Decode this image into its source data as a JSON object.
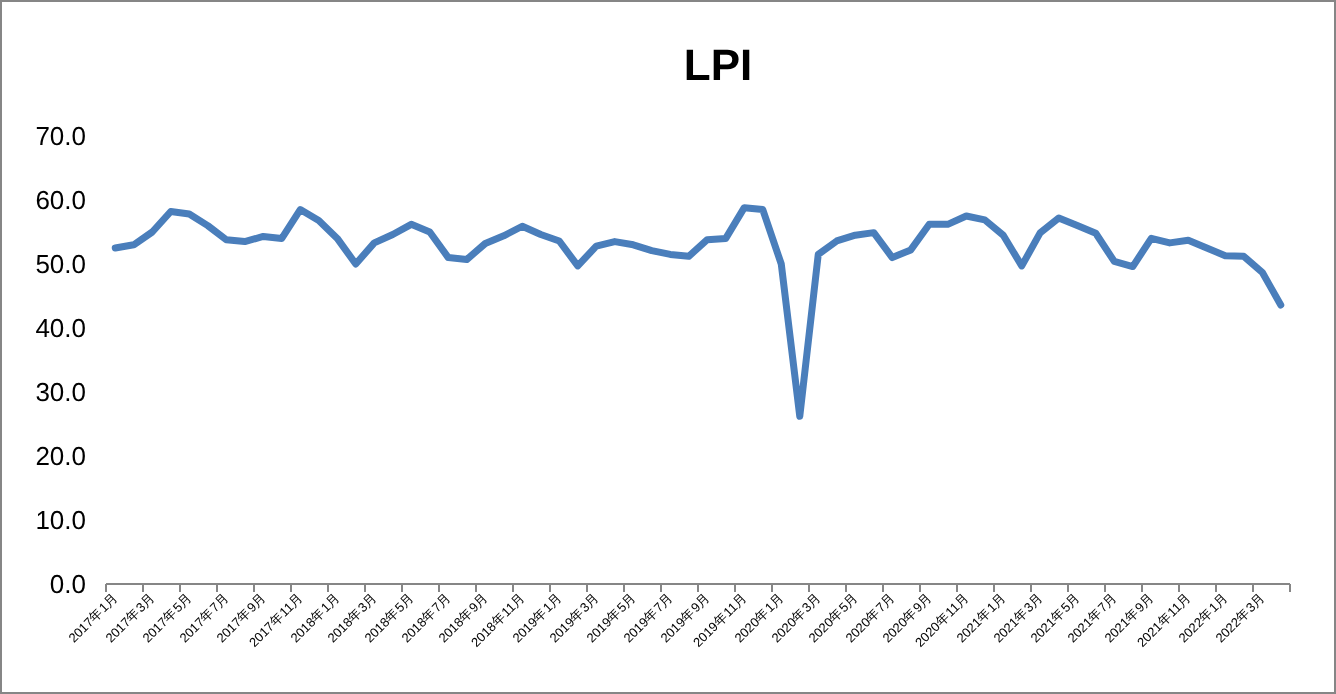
{
  "chart_data": {
    "type": "line",
    "title": "LPI",
    "categories": [
      "2017年1月",
      null,
      "2017年3月",
      null,
      "2017年5月",
      null,
      "2017年7月",
      null,
      "2017年9月",
      null,
      "2017年11月",
      null,
      "2018年1月",
      null,
      "2018年3月",
      null,
      "2018年5月",
      null,
      "2018年7月",
      null,
      "2018年9月",
      null,
      "2018年11月",
      null,
      "2019年1月",
      null,
      "2019年3月",
      null,
      "2019年5月",
      null,
      "2019年7月",
      null,
      "2019年9月",
      null,
      "2019年11月",
      null,
      "2020年1月",
      null,
      "2020年3月",
      null,
      "2020年5月",
      null,
      "2020年7月",
      null,
      "2020年9月",
      null,
      "2020年11月",
      null,
      "2021年1月",
      null,
      "2021年3月",
      null,
      "2021年5月",
      null,
      "2021年7月",
      null,
      "2021年9月",
      null,
      "2021年11月",
      null,
      "2022年1月",
      null,
      "2022年3月",
      null
    ],
    "series": [
      {
        "color": "#4a7ebb",
        "values": [
          52.5,
          53,
          55,
          58.2,
          57.8,
          56,
          53.8,
          53.5,
          54.3,
          54,
          58.5,
          56.8,
          54,
          50,
          53.3,
          54.6,
          56.2,
          55,
          51,
          50.7,
          53.2,
          54.4,
          55.9,
          54.6,
          53.6,
          49.7,
          52.8,
          53.5,
          53,
          52.1,
          51.5,
          51.2,
          53.8,
          54,
          58.8,
          58.5,
          50,
          26.2,
          51.5,
          53.6,
          54.5,
          54.9,
          51,
          52.2,
          56.2,
          56.2,
          57.5,
          56.9,
          54.5,
          49.7,
          54.9,
          57.2,
          56,
          54.8,
          50.4,
          49.6,
          54,
          53.3,
          53.7,
          52.5,
          51.3,
          51.2,
          48.7,
          43.6
        ]
      }
    ],
    "ylim": [
      0,
      70
    ],
    "yticks": [
      {
        "value": 0,
        "label": "0.0"
      },
      {
        "value": 10,
        "label": "10.0"
      },
      {
        "value": 20,
        "label": "20.0"
      },
      {
        "value": 30,
        "label": "30.0"
      },
      {
        "value": 40,
        "label": "40.0"
      },
      {
        "value": 50,
        "label": "50.0"
      },
      {
        "value": 60,
        "label": "60.0"
      },
      {
        "value": 70,
        "label": "70.0"
      }
    ],
    "marker": "none",
    "line_style": "solid",
    "grid": false
  }
}
